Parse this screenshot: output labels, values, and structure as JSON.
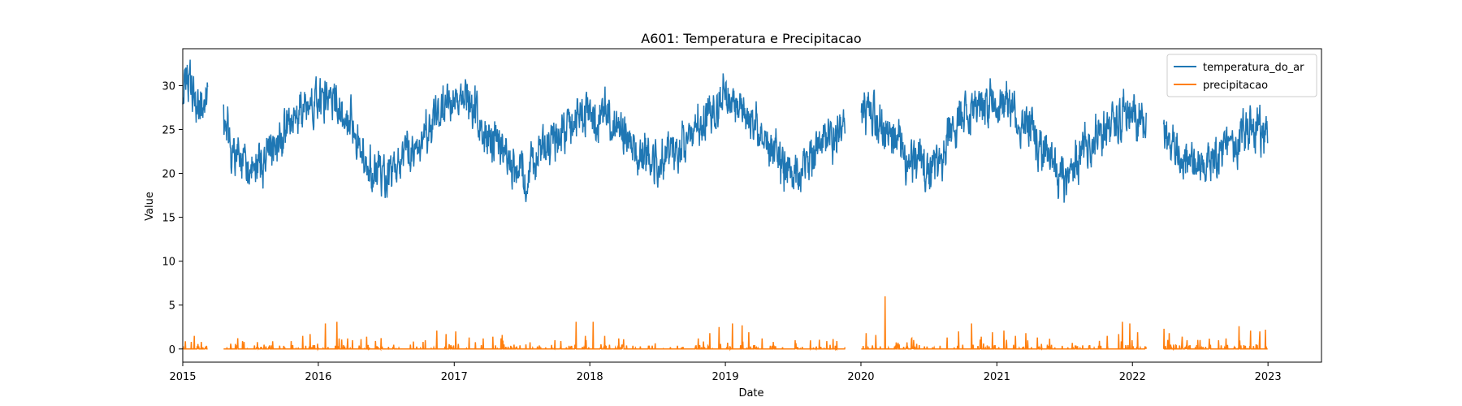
{
  "chart_data": {
    "type": "line",
    "title": "A601: Temperatura e Precipitacao",
    "xlabel": "Date",
    "ylabel": "Value",
    "xlim": [
      "2015-01-01",
      "2023-05-25"
    ],
    "ylim": [
      -1.5,
      34.2
    ],
    "x_ticks": [
      "2015-01-01",
      "2016-01-01",
      "2017-01-01",
      "2018-01-01",
      "2019-01-01",
      "2020-01-01",
      "2021-01-01",
      "2022-01-01",
      "2023-01-01"
    ],
    "x_tick_labels": [
      "2015",
      "2016",
      "2017",
      "2018",
      "2019",
      "2020",
      "2021",
      "2022",
      "2023"
    ],
    "y_ticks": [
      0,
      5,
      10,
      15,
      20,
      25,
      30
    ],
    "legend": {
      "position": "upper right"
    },
    "grid": false,
    "gaps": [
      {
        "start": "2015-03-10",
        "end": "2015-04-20"
      },
      {
        "start": "2019-11-20",
        "end": "2020-01-01"
      },
      {
        "start": "2022-02-08",
        "end": "2022-03-25"
      }
    ],
    "series": [
      {
        "name": "temperatura_do_ar",
        "color": "#1f77b4",
        "frequency": "daily (subsampled points shown below)",
        "points": [
          [
            "2015-01-01",
            29.5
          ],
          [
            "2015-01-20",
            30.5
          ],
          [
            "2015-02-10",
            27.5
          ],
          [
            "2015-03-05",
            28.0
          ],
          [
            "2015-04-25",
            25.0
          ],
          [
            "2015-05-15",
            22.5
          ],
          [
            "2015-06-10",
            21.0
          ],
          [
            "2015-07-05",
            20.0
          ],
          [
            "2015-08-01",
            21.5
          ],
          [
            "2015-09-01",
            23.0
          ],
          [
            "2015-10-01",
            24.5
          ],
          [
            "2015-11-01",
            26.0
          ],
          [
            "2015-12-01",
            27.5
          ],
          [
            "2016-01-01",
            28.0
          ],
          [
            "2016-02-01",
            28.5
          ],
          [
            "2016-03-01",
            27.5
          ],
          [
            "2016-04-01",
            25.5
          ],
          [
            "2016-05-01",
            21.5
          ],
          [
            "2016-06-01",
            20.0
          ],
          [
            "2016-07-01",
            19.5
          ],
          [
            "2016-08-01",
            21.0
          ],
          [
            "2016-09-01",
            22.5
          ],
          [
            "2016-10-01",
            23.5
          ],
          [
            "2016-11-01",
            25.5
          ],
          [
            "2016-12-01",
            27.0
          ],
          [
            "2017-01-01",
            28.5
          ],
          [
            "2017-02-01",
            28.0
          ],
          [
            "2017-03-01",
            27.0
          ],
          [
            "2017-04-01",
            24.0
          ],
          [
            "2017-05-01",
            22.5
          ],
          [
            "2017-06-01",
            21.0
          ],
          [
            "2017-07-01",
            20.0
          ],
          [
            "2017-08-01",
            21.0
          ],
          [
            "2017-09-01",
            23.0
          ],
          [
            "2017-10-01",
            24.0
          ],
          [
            "2017-11-01",
            25.0
          ],
          [
            "2017-12-01",
            26.0
          ],
          [
            "2018-01-01",
            27.0
          ],
          [
            "2018-02-01",
            26.5
          ],
          [
            "2018-03-01",
            25.5
          ],
          [
            "2018-04-01",
            24.5
          ],
          [
            "2018-05-01",
            23.0
          ],
          [
            "2018-06-01",
            21.5
          ],
          [
            "2018-07-01",
            21.0
          ],
          [
            "2018-08-01",
            22.0
          ],
          [
            "2018-09-01",
            23.5
          ],
          [
            "2018-10-01",
            24.5
          ],
          [
            "2018-11-01",
            26.0
          ],
          [
            "2018-12-01",
            27.5
          ],
          [
            "2019-01-01",
            29.0
          ],
          [
            "2019-02-01",
            28.0
          ],
          [
            "2019-03-01",
            26.5
          ],
          [
            "2019-04-01",
            25.0
          ],
          [
            "2019-05-01",
            23.5
          ],
          [
            "2019-06-01",
            21.0
          ],
          [
            "2019-07-01",
            19.5
          ],
          [
            "2019-08-01",
            20.5
          ],
          [
            "2019-09-01",
            22.5
          ],
          [
            "2019-10-01",
            24.0
          ],
          [
            "2019-11-15",
            25.0
          ],
          [
            "2020-01-05",
            27.0
          ],
          [
            "2020-02-01",
            26.5
          ],
          [
            "2020-03-01",
            25.5
          ],
          [
            "2020-04-01",
            24.0
          ],
          [
            "2020-05-01",
            22.5
          ],
          [
            "2020-06-01",
            21.5
          ],
          [
            "2020-07-01",
            20.0
          ],
          [
            "2020-08-01",
            21.5
          ],
          [
            "2020-09-01",
            25.0
          ],
          [
            "2020-10-01",
            26.5
          ],
          [
            "2020-11-01",
            27.0
          ],
          [
            "2020-12-01",
            28.0
          ],
          [
            "2021-01-01",
            28.0
          ],
          [
            "2021-02-01",
            27.5
          ],
          [
            "2021-03-01",
            26.0
          ],
          [
            "2021-04-01",
            24.5
          ],
          [
            "2021-05-01",
            23.0
          ],
          [
            "2021-06-01",
            20.5
          ],
          [
            "2021-07-01",
            19.0
          ],
          [
            "2021-08-01",
            20.5
          ],
          [
            "2021-09-01",
            23.5
          ],
          [
            "2021-10-01",
            24.5
          ],
          [
            "2021-11-01",
            25.5
          ],
          [
            "2021-12-01",
            26.5
          ],
          [
            "2022-01-01",
            27.0
          ],
          [
            "2022-02-05",
            25.5
          ],
          [
            "2022-03-28",
            24.0
          ],
          [
            "2022-05-01",
            22.5
          ],
          [
            "2022-06-01",
            21.5
          ],
          [
            "2022-07-01",
            20.5
          ],
          [
            "2022-08-01",
            21.5
          ],
          [
            "2022-09-01",
            23.0
          ],
          [
            "2022-10-01",
            23.5
          ],
          [
            "2022-11-01",
            24.5
          ],
          [
            "2022-12-01",
            25.0
          ],
          [
            "2022-12-31",
            24.5
          ]
        ]
      },
      {
        "name": "precipitacao",
        "color": "#ff7f0e",
        "frequency": "daily (baseline 0 with sporadic spikes)",
        "baseline": 0,
        "spikes": [
          [
            "2015-02-01",
            1.5
          ],
          [
            "2015-02-20",
            0.8
          ],
          [
            "2015-05-10",
            0.6
          ],
          [
            "2015-06-15",
            0.8
          ],
          [
            "2015-10-20",
            0.9
          ],
          [
            "2015-11-20",
            1.5
          ],
          [
            "2015-12-10",
            1.7
          ],
          [
            "2016-01-20",
            2.9
          ],
          [
            "2016-02-20",
            3.1
          ],
          [
            "2016-03-20",
            1.2
          ],
          [
            "2016-05-10",
            1.4
          ],
          [
            "2016-10-15",
            1.0
          ],
          [
            "2016-11-15",
            2.1
          ],
          [
            "2016-12-10",
            1.7
          ],
          [
            "2017-01-05",
            2.0
          ],
          [
            "2017-02-10",
            1.3
          ],
          [
            "2017-03-20",
            1.2
          ],
          [
            "2017-04-15",
            1.4
          ],
          [
            "2017-05-10",
            1.6
          ],
          [
            "2017-10-15",
            0.9
          ],
          [
            "2017-11-25",
            3.1
          ],
          [
            "2017-12-20",
            1.5
          ],
          [
            "2018-01-10",
            3.1
          ],
          [
            "2018-02-10",
            1.5
          ],
          [
            "2018-03-20",
            1.2
          ],
          [
            "2018-10-20",
            1.2
          ],
          [
            "2018-11-20",
            1.8
          ],
          [
            "2018-12-15",
            2.5
          ],
          [
            "2019-01-20",
            2.9
          ],
          [
            "2019-02-15",
            2.7
          ],
          [
            "2019-03-05",
            1.9
          ],
          [
            "2019-04-10",
            1.2
          ],
          [
            "2019-05-10",
            0.8
          ],
          [
            "2019-10-01",
            0.9
          ],
          [
            "2020-01-15",
            1.8
          ],
          [
            "2020-02-10",
            1.6
          ],
          [
            "2020-03-06",
            6.0
          ],
          [
            "2020-04-10",
            0.7
          ],
          [
            "2020-08-20",
            1.3
          ],
          [
            "2020-09-20",
            2.0
          ],
          [
            "2020-10-25",
            2.9
          ],
          [
            "2020-11-20",
            1.4
          ],
          [
            "2020-12-20",
            1.9
          ],
          [
            "2021-01-20",
            2.1
          ],
          [
            "2021-02-20",
            1.5
          ],
          [
            "2021-03-20",
            1.8
          ],
          [
            "2021-04-20",
            1.3
          ],
          [
            "2021-10-25",
            1.5
          ],
          [
            "2021-11-25",
            1.7
          ],
          [
            "2021-12-05",
            3.1
          ],
          [
            "2021-12-25",
            2.9
          ],
          [
            "2022-01-15",
            1.9
          ],
          [
            "2022-03-27",
            2.3
          ],
          [
            "2022-04-10",
            1.8
          ],
          [
            "2022-05-15",
            1.4
          ],
          [
            "2022-09-10",
            1.2
          ],
          [
            "2022-10-15",
            2.6
          ],
          [
            "2022-11-15",
            2.1
          ],
          [
            "2022-12-10",
            2.0
          ],
          [
            "2022-12-25",
            2.2
          ]
        ]
      }
    ]
  }
}
